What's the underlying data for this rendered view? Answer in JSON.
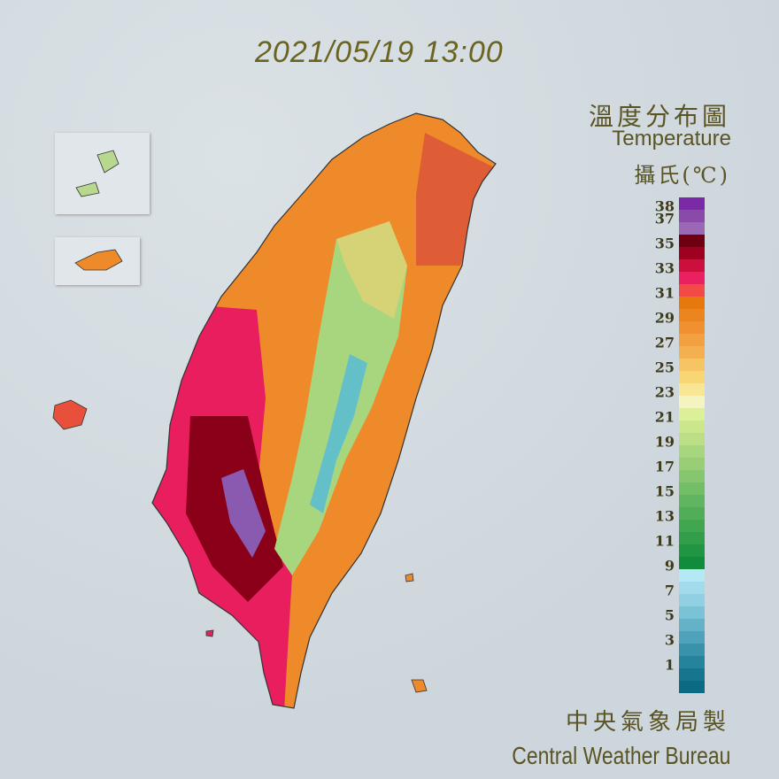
{
  "timestamp": "2021/05/19 13:00",
  "title_zh": "溫度分布圖",
  "title_en": "Temperature",
  "unit": "攝氏(℃)",
  "credit_zh": "中央氣象局製",
  "credit_en": "Central Weather Bureau",
  "legend": {
    "labels": [
      "38",
      "37",
      "35",
      "33",
      "31",
      "29",
      "27",
      "25",
      "23",
      "21",
      "19",
      "17",
      "15",
      "13",
      "11",
      "9",
      "7",
      "5",
      "3",
      "1"
    ],
    "colors": [
      "#7a2aa6",
      "#8a4aa8",
      "#9a68b4",
      "#6e0012",
      "#a0001f",
      "#cc0f3c",
      "#ea2060",
      "#f24a44",
      "#e6780e",
      "#ec8420",
      "#f09030",
      "#f2a040",
      "#f4b050",
      "#f6c462",
      "#f8d674",
      "#f8e694",
      "#f4f4c0",
      "#dcf09a",
      "#cce68c",
      "#bcde86",
      "#a8d67e",
      "#98ce76",
      "#86c66e",
      "#72be66",
      "#60b660",
      "#50ae58",
      "#40a650",
      "#309e4a",
      "#209644",
      "#108c3c",
      "#b4e8f4",
      "#a2dcec",
      "#90d0e2",
      "#7ac2d6",
      "#64b2c8",
      "#4ea2ba",
      "#3892aa",
      "#26839c",
      "#16768e",
      "#0c6a82"
    ]
  },
  "map_colors": {
    "base": "#ee8a2a",
    "coast": "#e81e5e",
    "hot": "#8a0018",
    "hottest": "#8a5ab0",
    "mountain": "#a8d67e",
    "peak": "#64c0c8",
    "land_boundary": "#333333"
  }
}
